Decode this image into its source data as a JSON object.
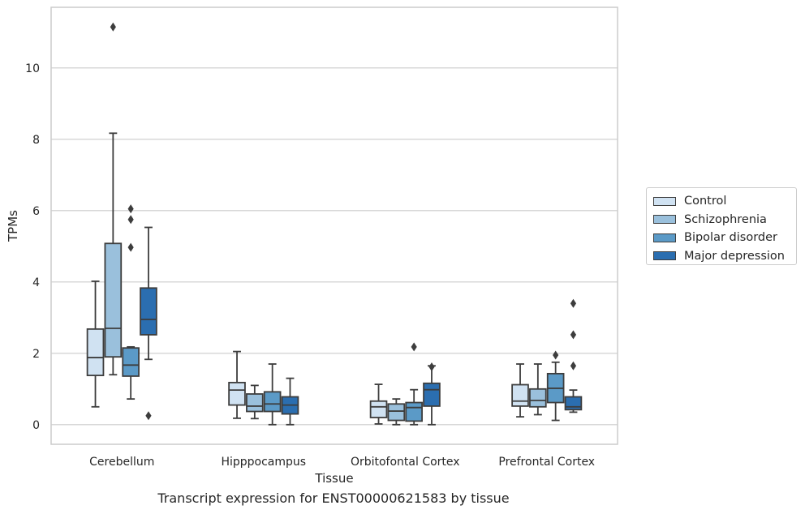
{
  "chart_data": {
    "type": "box",
    "title": "Transcript expression for ENST00000621583 by tissue",
    "xlabel": "Tissue",
    "ylabel": "TPMs",
    "ylim": [
      -0.55,
      11.7
    ],
    "yticks": [
      0,
      2,
      4,
      6,
      8,
      10
    ],
    "grid": "horizontal",
    "legend_position": "right",
    "categories": [
      "Cerebellum",
      "Hipppocampus",
      "Orbitofontal Cortex",
      "Prefrontal Cortex"
    ],
    "series": [
      {
        "name": "Control",
        "color": "#d0e2f2",
        "boxes": [
          {
            "whislo": 0.5,
            "q1": 1.38,
            "med": 1.88,
            "q3": 2.68,
            "whishi": 4.02,
            "fliers": []
          },
          {
            "whislo": 0.18,
            "q1": 0.55,
            "med": 0.97,
            "q3": 1.18,
            "whislo_note": "",
            "whishi": 2.05,
            "fliers": []
          },
          {
            "whislo": 0.02,
            "q1": 0.2,
            "med": 0.5,
            "q3": 0.66,
            "whishi": 1.13,
            "fliers": []
          },
          {
            "whislo": 0.22,
            "q1": 0.52,
            "med": 0.66,
            "q3": 1.12,
            "whishi": 1.7,
            "fliers": []
          }
        ]
      },
      {
        "name": "Schizophrenia",
        "color": "#9ac0dc",
        "boxes": [
          {
            "whislo": 1.4,
            "q1": 1.9,
            "med": 2.7,
            "q3": 5.08,
            "whishi": 8.17,
            "fliers": [
              11.15
            ]
          },
          {
            "whislo": 0.17,
            "q1": 0.37,
            "med": 0.52,
            "q3": 0.86,
            "whishi": 1.1,
            "fliers": []
          },
          {
            "whislo": 0.0,
            "q1": 0.12,
            "med": 0.38,
            "q3": 0.58,
            "whishi": 0.72,
            "fliers": []
          },
          {
            "whislo": 0.28,
            "q1": 0.5,
            "med": 0.68,
            "q3": 1.0,
            "whishi": 1.7,
            "fliers": []
          }
        ]
      },
      {
        "name": "Bipolar disorder",
        "color": "#5b9ac7",
        "boxes": [
          {
            "whislo": 0.72,
            "q1": 1.36,
            "med": 1.67,
            "q3": 2.15,
            "whishi": 2.18,
            "fliers": [
              4.97,
              5.75,
              6.05
            ]
          },
          {
            "whislo": 0.0,
            "q1": 0.37,
            "med": 0.58,
            "q3": 0.92,
            "whishi": 1.7,
            "fliers": []
          },
          {
            "whislo": 0.0,
            "q1": 0.1,
            "med": 0.48,
            "q3": 0.62,
            "whishi": 0.98,
            "fliers": [
              2.18
            ]
          },
          {
            "whislo": 0.12,
            "q1": 0.62,
            "med": 1.02,
            "q3": 1.43,
            "whishi": 1.75,
            "fliers": [
              1.95
            ]
          }
        ]
      },
      {
        "name": "Major depression",
        "color": "#2b6eb0",
        "boxes": [
          {
            "whislo": 1.83,
            "q1": 2.52,
            "med": 2.95,
            "q3": 3.83,
            "whishi": 5.53,
            "fliers": [
              0.25
            ]
          },
          {
            "whislo": 0.0,
            "q1": 0.3,
            "med": 0.55,
            "q3": 0.78,
            "whishi": 1.3,
            "fliers": []
          },
          {
            "whislo": 0.0,
            "q1": 0.52,
            "med": 0.98,
            "q3": 1.16,
            "whishi": 1.65,
            "fliers": [
              1.62
            ]
          },
          {
            "whislo": 0.35,
            "q1": 0.42,
            "med": 0.5,
            "q3": 0.78,
            "whishi": 0.97,
            "fliers": [
              1.65,
              2.52,
              3.4
            ]
          }
        ]
      }
    ]
  }
}
